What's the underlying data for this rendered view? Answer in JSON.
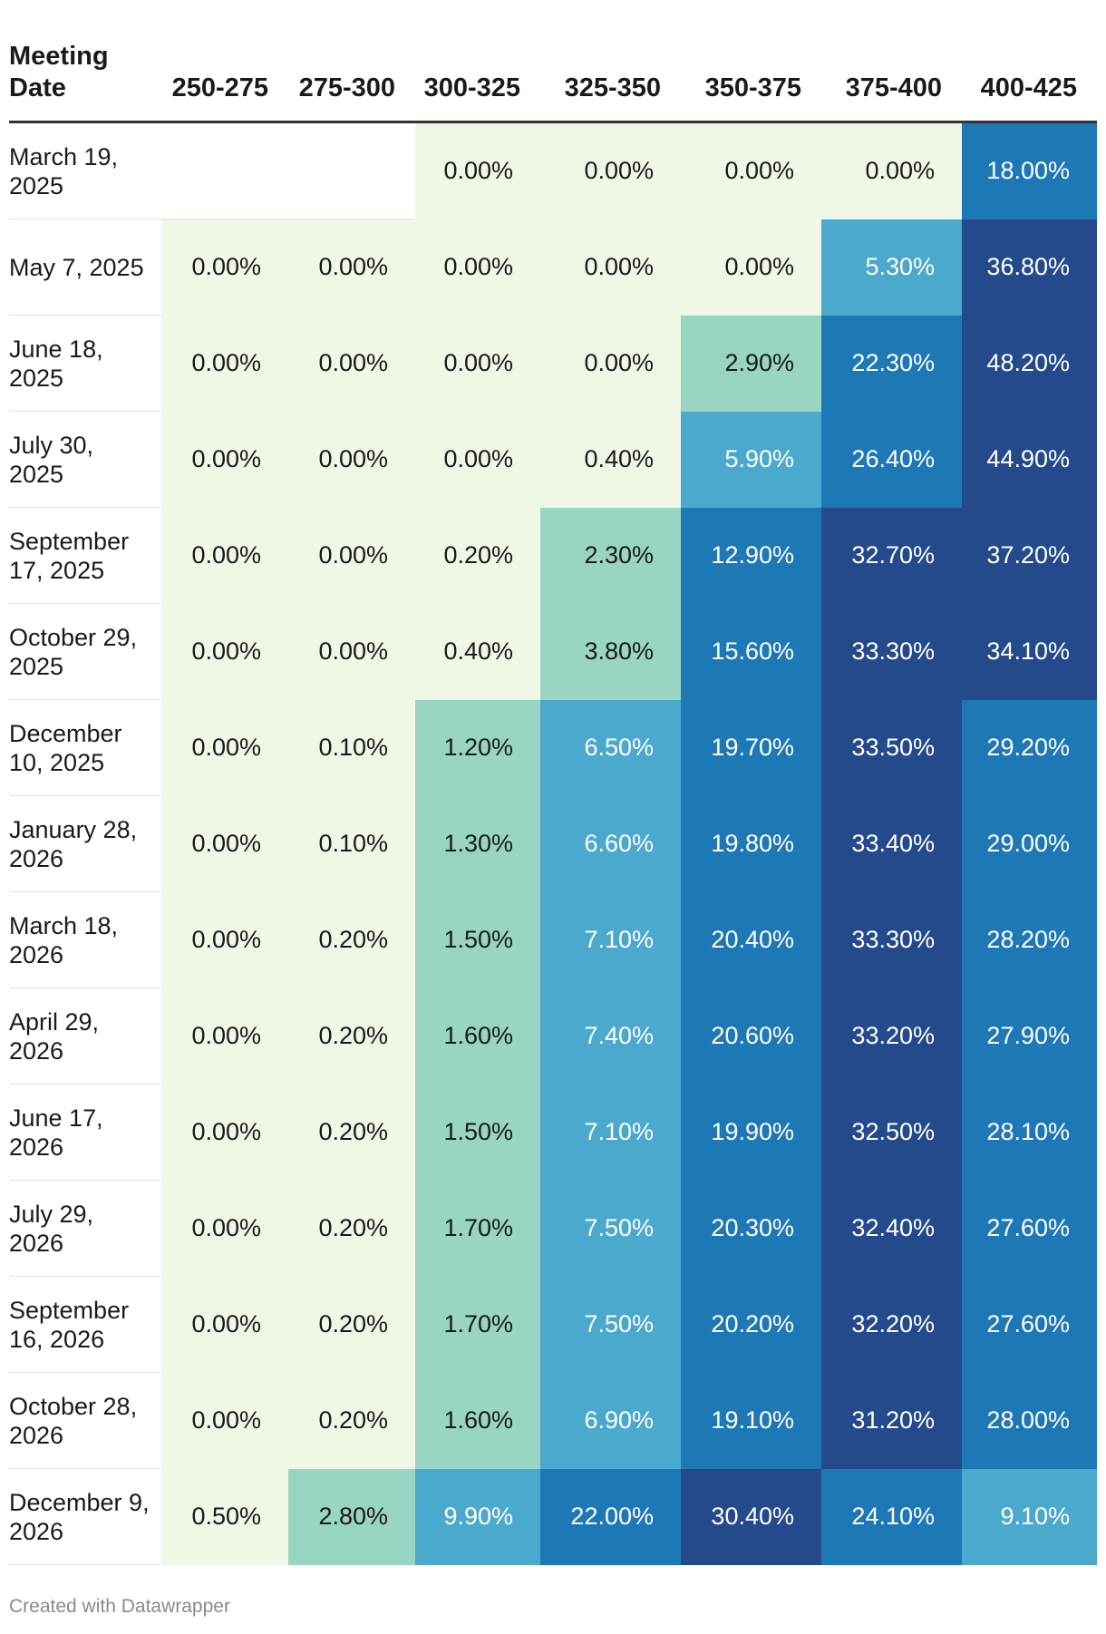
{
  "header": {
    "date_label": "Meeting Date",
    "bins": [
      "250-275",
      "275-300",
      "300-325",
      "325-350",
      "350-375",
      "375-400",
      "400-425"
    ]
  },
  "chart_data": {
    "type": "table",
    "title": "",
    "columns": [
      "Meeting Date",
      "250-275",
      "275-300",
      "300-325",
      "325-350",
      "350-375",
      "375-400",
      "400-425"
    ],
    "rows": [
      {
        "date": "March 19, 2025",
        "values": [
          null,
          null,
          "0.00%",
          "0.00%",
          "0.00%",
          "0.00%",
          "18.00%"
        ]
      },
      {
        "date": "May 7, 2025",
        "values": [
          "0.00%",
          "0.00%",
          "0.00%",
          "0.00%",
          "0.00%",
          "5.30%",
          "36.80%"
        ]
      },
      {
        "date": "June 18, 2025",
        "values": [
          "0.00%",
          "0.00%",
          "0.00%",
          "0.00%",
          "2.90%",
          "22.30%",
          "48.20%"
        ]
      },
      {
        "date": "July 30, 2025",
        "values": [
          "0.00%",
          "0.00%",
          "0.00%",
          "0.40%",
          "5.90%",
          "26.40%",
          "44.90%"
        ]
      },
      {
        "date": "September 17, 2025",
        "values": [
          "0.00%",
          "0.00%",
          "0.20%",
          "2.30%",
          "12.90%",
          "32.70%",
          "37.20%"
        ]
      },
      {
        "date": "October 29, 2025",
        "values": [
          "0.00%",
          "0.00%",
          "0.40%",
          "3.80%",
          "15.60%",
          "33.30%",
          "34.10%"
        ]
      },
      {
        "date": "December 10, 2025",
        "values": [
          "0.00%",
          "0.10%",
          "1.20%",
          "6.50%",
          "19.70%",
          "33.50%",
          "29.20%"
        ]
      },
      {
        "date": "January 28, 2026",
        "values": [
          "0.00%",
          "0.10%",
          "1.30%",
          "6.60%",
          "19.80%",
          "33.40%",
          "29.00%"
        ]
      },
      {
        "date": "March 18, 2026",
        "values": [
          "0.00%",
          "0.20%",
          "1.50%",
          "7.10%",
          "20.40%",
          "33.30%",
          "28.20%"
        ]
      },
      {
        "date": "April 29, 2026",
        "values": [
          "0.00%",
          "0.20%",
          "1.60%",
          "7.40%",
          "20.60%",
          "33.20%",
          "27.90%"
        ]
      },
      {
        "date": "June 17, 2026",
        "values": [
          "0.00%",
          "0.20%",
          "1.50%",
          "7.10%",
          "19.90%",
          "32.50%",
          "28.10%"
        ]
      },
      {
        "date": "July 29, 2026",
        "values": [
          "0.00%",
          "0.20%",
          "1.70%",
          "7.50%",
          "20.30%",
          "32.40%",
          "27.60%"
        ]
      },
      {
        "date": "September 16, 2026",
        "values": [
          "0.00%",
          "0.20%",
          "1.70%",
          "7.50%",
          "20.20%",
          "32.20%",
          "27.60%"
        ]
      },
      {
        "date": "October 28, 2026",
        "values": [
          "0.00%",
          "0.20%",
          "1.60%",
          "6.90%",
          "19.10%",
          "31.20%",
          "28.00%"
        ]
      },
      {
        "date": "December 9, 2026",
        "values": [
          "0.50%",
          "2.80%",
          "9.90%",
          "22.00%",
          "30.40%",
          "24.10%",
          "9.10%"
        ]
      }
    ],
    "color_scale": {
      "thresholds": [
        1,
        5,
        10,
        30
      ],
      "colors": [
        "#eff7e6",
        "#98d5c2",
        "#4aa9cc",
        "#1d78b5",
        "#254a8b"
      ],
      "text_light": "#ffffff",
      "text_dark": "#1a1a1a"
    }
  },
  "footer": {
    "credit": "Created with Datawrapper"
  }
}
